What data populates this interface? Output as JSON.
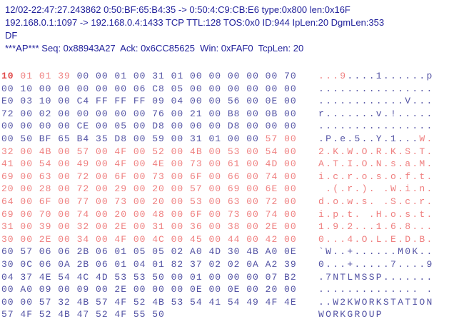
{
  "header": {
    "line1": "12/02-22:47:27.243862 0:50:BF:65:B4:35 -> 0:50:4:C9:CB:E6 type:0x800 len:0x16F",
    "line2": "192.168.0.1:1097 -> 192.168.0.4:1433 TCP TTL:128 TOS:0x0 ID:944 IpLen:20 DgmLen:353",
    "line3": "DF",
    "line4": "***AP*** Seq: 0x88943A27  Ack: 0x6CC85625  Win: 0xFAF0  TcpLen: 20"
  },
  "colors": {
    "background": "#ffffff",
    "header_text": "#21219b",
    "hex_blue": "#5353a4",
    "hex_red": "#ef7f7f",
    "hex_red_bold": "#e14a4a"
  },
  "hexdump": {
    "rows": [
      {
        "hex": [
          [
            "10",
            "rb"
          ],
          [
            " 01 01 39",
            "r"
          ],
          [
            " 00 00 01 00 31 01 00 00 00 00 00 70",
            "b"
          ]
        ],
        "ascii": [
          [
            "...9",
            "r"
          ],
          [
            "....1......p",
            "b"
          ]
        ]
      },
      {
        "hex": [
          [
            "00 10 00 00 00 00 00 06 C8 05 00 00 00 00 00 00",
            "b"
          ]
        ],
        "ascii": [
          [
            "................",
            "b"
          ]
        ]
      },
      {
        "hex": [
          [
            "E0 03 10 00 C4 FF FF FF 09 04 00 00 56 00 0E 00",
            "b"
          ]
        ],
        "ascii": [
          [
            "............V...",
            "b"
          ]
        ]
      },
      {
        "hex": [
          [
            "72 00 02 00 00 00 00 00 76 00 21 00 B8 00 0B 00",
            "b"
          ]
        ],
        "ascii": [
          [
            "r.......v.!.....",
            "b"
          ]
        ]
      },
      {
        "hex": [
          [
            "00 00 00 00 CE 00 05 00 D8 00 00 00 D8 00 00 00",
            "b"
          ]
        ],
        "ascii": [
          [
            "................",
            "b"
          ]
        ]
      },
      {
        "hex": [
          [
            "00 50 BF 65 B4 35 D8 00 59 00 31 01 00 00",
            "b"
          ],
          [
            " 57 00",
            "r"
          ]
        ],
        "ascii": [
          [
            ".P.e.5..Y.1...",
            "b"
          ],
          [
            "W.",
            "r"
          ]
        ]
      },
      {
        "hex": [
          [
            "32 00 4B 00 57 00 4F 00 52 00 4B 00 53 00 54 00",
            "r"
          ]
        ],
        "ascii": [
          [
            "2.K.W.O.R.K.S.T.",
            "r"
          ]
        ]
      },
      {
        "hex": [
          [
            "41 00 54 00 49 00 4F 00 4E 00 73 00 61 00 4D 00",
            "r"
          ]
        ],
        "ascii": [
          [
            "A.T.I.O.N.s.a.M.",
            "r"
          ]
        ]
      },
      {
        "hex": [
          [
            "69 00 63 00 72 00 6F 00 73 00 6F 00 66 00 74 00",
            "r"
          ]
        ],
        "ascii": [
          [
            "i.c.r.o.s.o.f.t.",
            "r"
          ]
        ]
      },
      {
        "hex": [
          [
            "20 00 28 00 72 00 29 00 20 00 57 00 69 00 6E 00",
            "r"
          ]
        ],
        "ascii": [
          [
            " .(.r.). .W.i.n.",
            "r"
          ]
        ]
      },
      {
        "hex": [
          [
            "64 00 6F 00 77 00 73 00 20 00 53 00 63 00 72 00",
            "r"
          ]
        ],
        "ascii": [
          [
            "d.o.w.s. .S.c.r.",
            "r"
          ]
        ]
      },
      {
        "hex": [
          [
            "69 00 70 00 74 00 20 00 48 00 6F 00 73 00 74 00",
            "r"
          ]
        ],
        "ascii": [
          [
            "i.p.t. .H.o.s.t.",
            "r"
          ]
        ]
      },
      {
        "hex": [
          [
            "31 00 39 00 32 00 2E 00 31 00 36 00 38 00 2E 00",
            "r"
          ]
        ],
        "ascii": [
          [
            "1.9.2...1.6.8...",
            "r"
          ]
        ]
      },
      {
        "hex": [
          [
            "30 00 2E 00 34 00 4F 00 4C 00 45 00 44 00 42 00",
            "r"
          ]
        ],
        "ascii": [
          [
            "0...4.O.L.E.D.B.",
            "r"
          ]
        ]
      },
      {
        "hex": [
          [
            "60 57 06 06 2B 06 01 05 05 02 A0 4D 30 4B A0 0E",
            "b"
          ]
        ],
        "ascii": [
          [
            "`W..+......M0K..",
            "b"
          ]
        ]
      },
      {
        "hex": [
          [
            "30 0C 06 0A 2B 06 01 04 01 82 37 02 02 0A A2 39",
            "b"
          ]
        ],
        "ascii": [
          [
            "0...+.....7....9",
            "b"
          ]
        ]
      },
      {
        "hex": [
          [
            "04 37 4E 54 4C 4D 53 53 50 00 01 00 00 00 07 B2",
            "b"
          ]
        ],
        "ascii": [
          [
            ".7NTLMSSP.......",
            "b"
          ]
        ]
      },
      {
        "hex": [
          [
            "00 A0 09 00 09 00 2E 00 00 00 0E 00 0E 00 20 00",
            "b"
          ]
        ],
        "ascii": [
          [
            ".............. .",
            "b"
          ]
        ]
      },
      {
        "hex": [
          [
            "00 00 57 32 4B 57 4F 52 4B 53 54 41 54 49 4F 4E",
            "b"
          ]
        ],
        "ascii": [
          [
            "..W2KWORKSTATION",
            "b"
          ]
        ]
      },
      {
        "hex": [
          [
            "57 4F 52 4B 47 52 4F 55 50",
            "b"
          ]
        ],
        "ascii": [
          [
            "WORKGROUP",
            "b"
          ]
        ]
      }
    ]
  }
}
